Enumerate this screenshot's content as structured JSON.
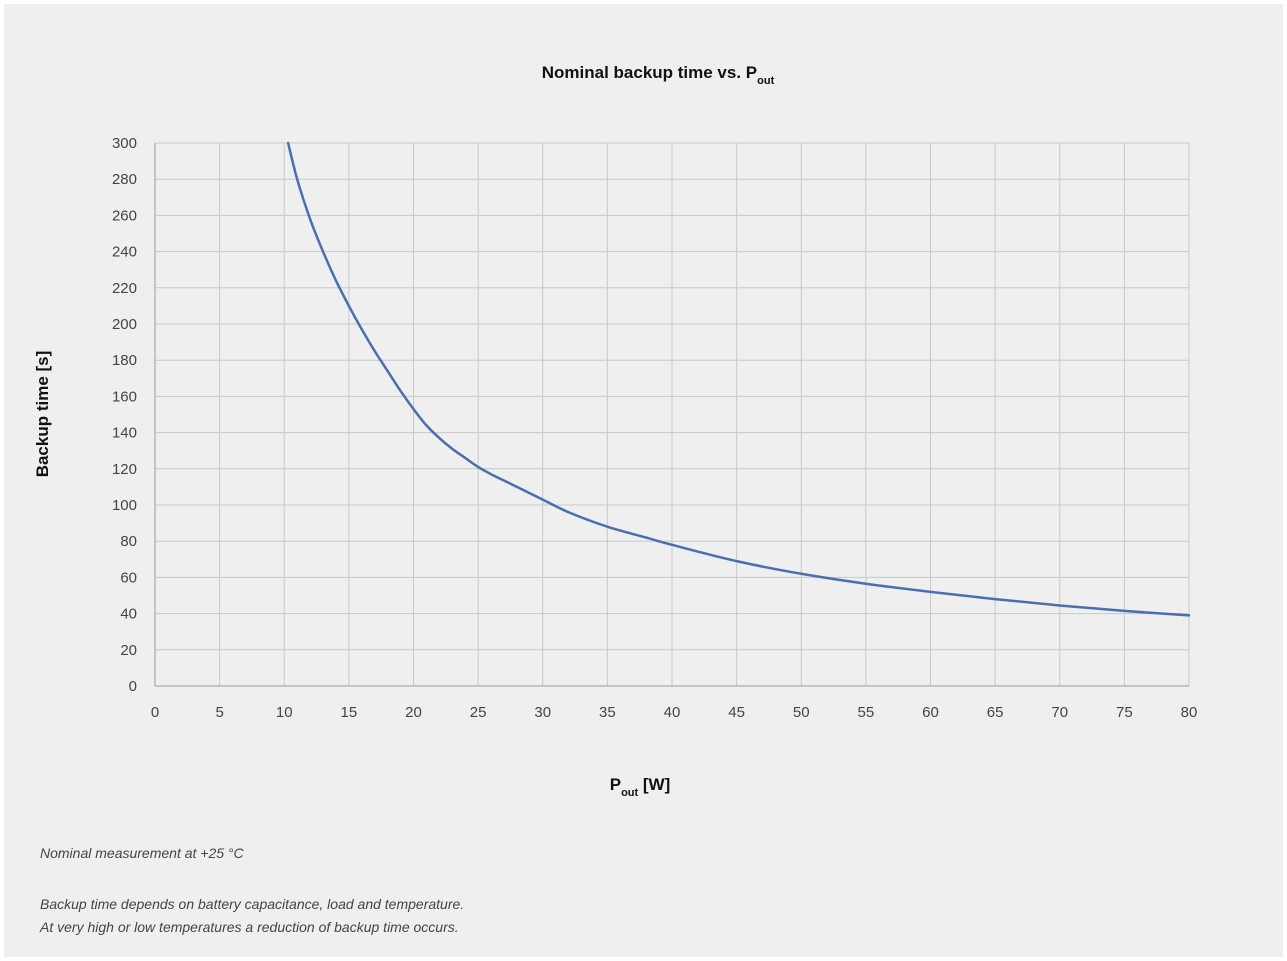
{
  "chart_data": {
    "type": "line",
    "title": {
      "main": "Nominal backup time vs. P",
      "sub": "out"
    },
    "xlabel": {
      "main": "P",
      "sub": "out",
      "unit": " [W]"
    },
    "ylabel": "Backup time [s]",
    "xlim": [
      0,
      80
    ],
    "ylim": [
      0,
      300
    ],
    "xticks": [
      0,
      5,
      10,
      15,
      20,
      25,
      30,
      35,
      40,
      45,
      50,
      55,
      60,
      65,
      70,
      75,
      80
    ],
    "yticks": [
      0,
      20,
      40,
      60,
      80,
      100,
      120,
      140,
      160,
      180,
      200,
      220,
      240,
      260,
      280,
      300
    ],
    "grid": true,
    "legend": "none",
    "line_color": "#4a6fb0",
    "series": [
      {
        "x": [
          10.3,
          11,
          12,
          13,
          14,
          15,
          16,
          17,
          18,
          19,
          20,
          21,
          22,
          23,
          24,
          25,
          26,
          27,
          28,
          29,
          30,
          32,
          35,
          38,
          40,
          45,
          50,
          55,
          60,
          65,
          70,
          75,
          80
        ],
        "values": [
          300,
          280,
          258,
          240,
          224,
          210,
          197,
          185,
          174,
          163,
          153,
          144,
          137,
          131,
          126,
          121,
          117,
          113.5,
          110,
          106.5,
          103,
          96,
          88,
          82,
          78,
          69,
          62,
          56.5,
          52,
          48,
          44.5,
          41.5,
          39
        ]
      }
    ]
  },
  "notes": {
    "measurement": "Nominal measurement at +25 °C",
    "line1": "Backup time depends on battery capacitance, load and temperature.",
    "line2": "At very high or low temperatures a reduction of backup time occurs."
  }
}
